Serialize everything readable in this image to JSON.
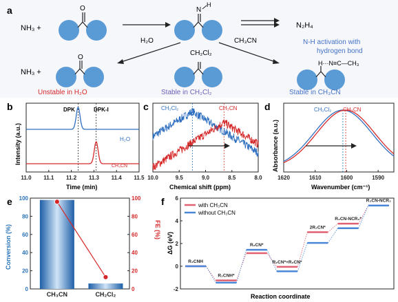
{
  "scheme": {
    "panel_label": "a",
    "nh3_plus_top": "NH₃ +",
    "nh3_plus_bottom": "NH₃ +",
    "imine_h": "H",
    "imine_n": "N",
    "ketone_o": "O",
    "ketone_o_bottom": "O",
    "n2h4": "N₂H₄",
    "h2o": "H₂O",
    "ch3cn_arrow": "CH₃CN",
    "ch2cl2_mid": "CH₂Cl₂",
    "nh_activation_line1": "N-H activation with",
    "nh_activation_line2": "hydrogen bond",
    "unstable_h2o": "Unstable in H₂O",
    "stable_ch2cl2": "Stable in CH₂Cl₂",
    "stable_ch3cn": "Stable in CH₃CN",
    "hbond_text": "H···N≡C—CH₃",
    "colors": {
      "sphere": "#5b9bd5",
      "red": "#d62728",
      "purple": "#6b5fb5",
      "blue": "#4472c4",
      "ink": "#222222"
    }
  },
  "panel_b": {
    "panel_label": "b",
    "marker_dpk": "DPK",
    "marker_dpki": "DPK-I",
    "chart_data": {
      "type": "line",
      "xlabel": "Time (min)",
      "ylabel": "Intensity (a.u.)",
      "xlim": [
        11.5,
        11.0
      ],
      "xticks": [
        "11.0",
        "11.1",
        "11.2",
        "11.3",
        "11.4",
        "11.5"
      ],
      "series": [
        {
          "name": "H₂O",
          "color": "#2f6fc0",
          "peak_x": 11.23,
          "baseline": 0.62,
          "height": 0.32,
          "width": 0.012
        },
        {
          "name": "CH₃CN",
          "color": "#d62728",
          "peak_x": 11.31,
          "baseline": 0.12,
          "height": 0.32,
          "width": 0.012
        }
      ],
      "vlines": [
        11.23,
        11.31
      ]
    }
  },
  "panel_c": {
    "panel_label": "c",
    "chart_data": {
      "type": "line",
      "xlabel": "Chemical shift (ppm)",
      "xlim": [
        10.0,
        8.0
      ],
      "xticks": [
        "10.0",
        "9.5",
        "9.0",
        "8.5",
        "8.0"
      ],
      "series": [
        {
          "name": "CH₂Cl₂",
          "color": "#2f6fc0",
          "center": 9.25,
          "peak": 0.88,
          "floor": 0.3
        },
        {
          "name": "CH₃CN",
          "color": "#d62728",
          "center": 8.65,
          "peak": 0.72,
          "floor": 0.14
        }
      ],
      "vlines": [
        9.25,
        8.65
      ]
    }
  },
  "panel_d": {
    "panel_label": "d",
    "chart_data": {
      "type": "line",
      "xlabel": "Wavenumber (cm⁻¹)",
      "ylabel": "Absorbance (a.u.)",
      "xlim": [
        1620,
        1585
      ],
      "xticks": [
        "1620",
        "1610",
        "1600",
        "1590"
      ],
      "series": [
        {
          "name": "CH₂Cl₂",
          "color": "#2f6fc0",
          "center": 1601.2
        },
        {
          "name": "CH₃CN",
          "color": "#d62728",
          "center": 1600.3
        }
      ],
      "vlines": [
        1601.2,
        1600.3
      ]
    }
  },
  "panel_e": {
    "panel_label": "e",
    "chart_data": {
      "type": "bar",
      "categories": [
        "CH₃CN",
        "CH₂Cl₂"
      ],
      "ylabel": "Conversion (%)",
      "y2label": "FE (%)",
      "ylim": [
        0,
        100
      ],
      "yticks": [
        "0",
        "20",
        "40",
        "60",
        "80",
        "100"
      ],
      "series": [
        {
          "name": "Conversion",
          "color": "#3a86c8",
          "values": [
            98,
            6
          ]
        },
        {
          "name": "FE",
          "color": "#d62728",
          "values": [
            96,
            13
          ]
        }
      ]
    }
  },
  "panel_f": {
    "panel_label": "f",
    "chart_data": {
      "type": "line",
      "xlabel": "Reaction coordinate",
      "ylabel": "ΔG (eV)",
      "ylim": [
        -2,
        6
      ],
      "yticks": [
        "-2",
        "0",
        "2",
        "4",
        "6"
      ],
      "states": [
        "R₂CNH",
        "R₂CNH*",
        "R₂CN*",
        "R₂CN*+R₂CN*",
        "2R₂CN*",
        "R₂CN-NCR₂*",
        "R₂CN-NCR₂"
      ],
      "series": [
        {
          "name": "with CH₃CN",
          "color": "#e06070",
          "values": [
            0.0,
            -1.25,
            1.15,
            -0.05,
            3.0,
            3.75,
            5.35
          ]
        },
        {
          "name": "without CH₃CN",
          "color": "#4a86d8",
          "values": [
            0.0,
            -1.45,
            1.45,
            -0.45,
            2.05,
            3.35,
            5.35
          ]
        }
      ]
    }
  }
}
